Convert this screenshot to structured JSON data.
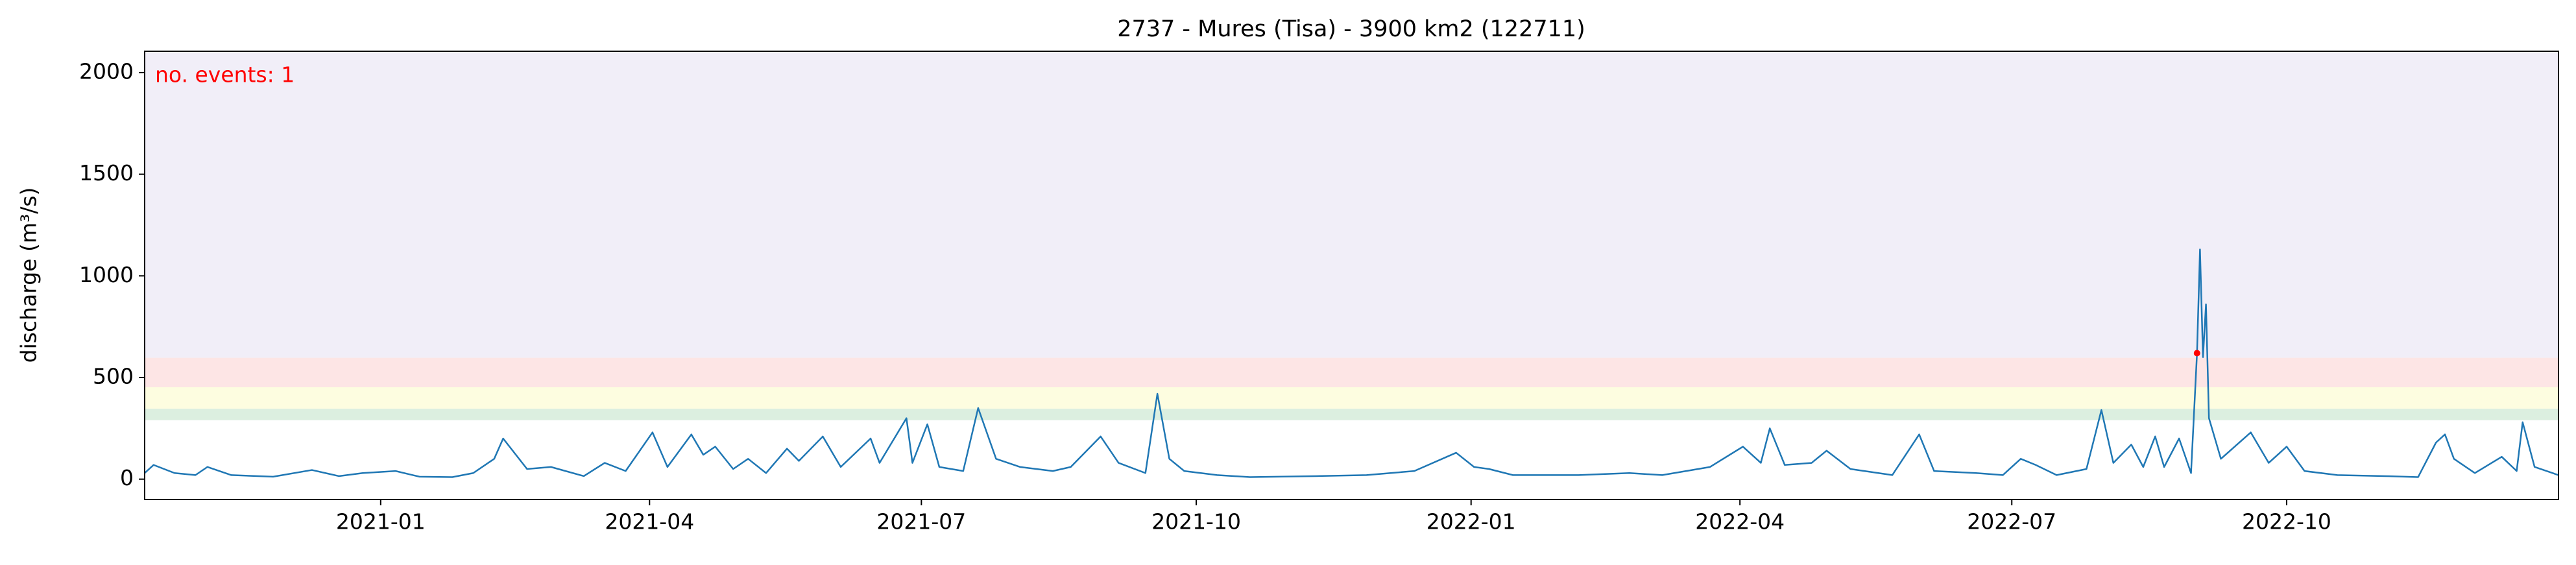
{
  "chart_data": {
    "type": "line",
    "title": "2737 - Mures (Tisa) - 3900 km2 (122711)",
    "y_label": "discharge (m³/s)",
    "annotation": "no. events: 1",
    "color": "#1f77b4",
    "xlim": [
      "2020-10-14",
      "2022-12-31"
    ],
    "ylim": [
      -100,
      2105
    ],
    "yticks": [
      0,
      500,
      1000,
      1500,
      2000
    ],
    "xticks": [
      {
        "value": "2021-01-01",
        "label": "2021-01"
      },
      {
        "value": "2021-04-01",
        "label": "2021-04"
      },
      {
        "value": "2021-07-01",
        "label": "2021-07"
      },
      {
        "value": "2021-10-01",
        "label": "2021-10"
      },
      {
        "value": "2022-01-01",
        "label": "2022-01"
      },
      {
        "value": "2022-04-01",
        "label": "2022-04"
      },
      {
        "value": "2022-07-01",
        "label": "2022-07"
      },
      {
        "value": "2022-10-01",
        "label": "2022-10"
      }
    ],
    "threshold_bands": {
      "values": [
        290,
        347,
        452,
        597
      ],
      "colors": [
        "#dcefe0",
        "#fdfde0",
        "#fde5e5",
        "#f1eef8"
      ]
    },
    "events": {
      "x": [
        "2022-09-01"
      ],
      "values": [
        620
      ],
      "color": "#ff0000"
    },
    "x": [
      "2020-10-14",
      "2020-10-17",
      "2020-10-24",
      "2020-10-31",
      "2020-11-04",
      "2020-11-12",
      "2020-11-26",
      "2020-12-09",
      "2020-12-18",
      "2020-12-26",
      "2021-01-06",
      "2021-01-14",
      "2021-01-25",
      "2021-02-01",
      "2021-02-08",
      "2021-02-11",
      "2021-02-19",
      "2021-02-27",
      "2021-03-10",
      "2021-03-17",
      "2021-03-24",
      "2021-04-02",
      "2021-04-07",
      "2021-04-15",
      "2021-04-19",
      "2021-04-23",
      "2021-04-29",
      "2021-05-04",
      "2021-05-10",
      "2021-05-17",
      "2021-05-21",
      "2021-05-29",
      "2021-06-04",
      "2021-06-14",
      "2021-06-17",
      "2021-06-26",
      "2021-06-28",
      "2021-07-03",
      "2021-07-07",
      "2021-07-15",
      "2021-07-20",
      "2021-07-26",
      "2021-08-03",
      "2021-08-14",
      "2021-08-20",
      "2021-08-30",
      "2021-09-05",
      "2021-09-14",
      "2021-09-18",
      "2021-09-22",
      "2021-09-27",
      "2021-10-08",
      "2021-10-19",
      "2021-11-10",
      "2021-11-27",
      "2021-12-13",
      "2021-12-27",
      "2022-01-02",
      "2022-01-07",
      "2022-01-15",
      "2022-02-06",
      "2022-02-23",
      "2022-03-06",
      "2022-03-22",
      "2022-04-02",
      "2022-04-08",
      "2022-04-11",
      "2022-04-16",
      "2022-04-25",
      "2022-04-30",
      "2022-05-08",
      "2022-05-22",
      "2022-05-31",
      "2022-06-05",
      "2022-06-19",
      "2022-06-28",
      "2022-07-04",
      "2022-07-09",
      "2022-07-16",
      "2022-07-26",
      "2022-07-31",
      "2022-08-04",
      "2022-08-10",
      "2022-08-14",
      "2022-08-18",
      "2022-08-21",
      "2022-08-26",
      "2022-08-30",
      "2022-09-01",
      "2022-09-02",
      "2022-09-03",
      "2022-09-04",
      "2022-09-05",
      "2022-09-09",
      "2022-09-19",
      "2022-09-25",
      "2022-10-01",
      "2022-10-07",
      "2022-10-18",
      "2022-11-03",
      "2022-11-14",
      "2022-11-20",
      "2022-11-23",
      "2022-11-26",
      "2022-12-03",
      "2022-12-12",
      "2022-12-17",
      "2022-12-19",
      "2022-12-23",
      "2022-12-31"
    ],
    "values": [
      30,
      70,
      30,
      20,
      60,
      20,
      12,
      45,
      15,
      30,
      40,
      12,
      10,
      30,
      100,
      200,
      50,
      60,
      15,
      80,
      40,
      230,
      60,
      220,
      120,
      160,
      50,
      100,
      30,
      150,
      90,
      210,
      60,
      200,
      80,
      300,
      80,
      270,
      60,
      40,
      350,
      100,
      60,
      40,
      60,
      210,
      80,
      30,
      420,
      100,
      40,
      20,
      10,
      15,
      20,
      40,
      130,
      60,
      50,
      20,
      20,
      30,
      20,
      60,
      160,
      80,
      250,
      70,
      80,
      140,
      50,
      20,
      220,
      40,
      30,
      20,
      100,
      70,
      20,
      50,
      340,
      80,
      170,
      60,
      210,
      60,
      200,
      30,
      620,
      1130,
      600,
      860,
      300,
      100,
      230,
      80,
      160,
      40,
      20,
      15,
      10,
      180,
      220,
      100,
      30,
      110,
      40,
      280,
      60,
      20
    ]
  }
}
